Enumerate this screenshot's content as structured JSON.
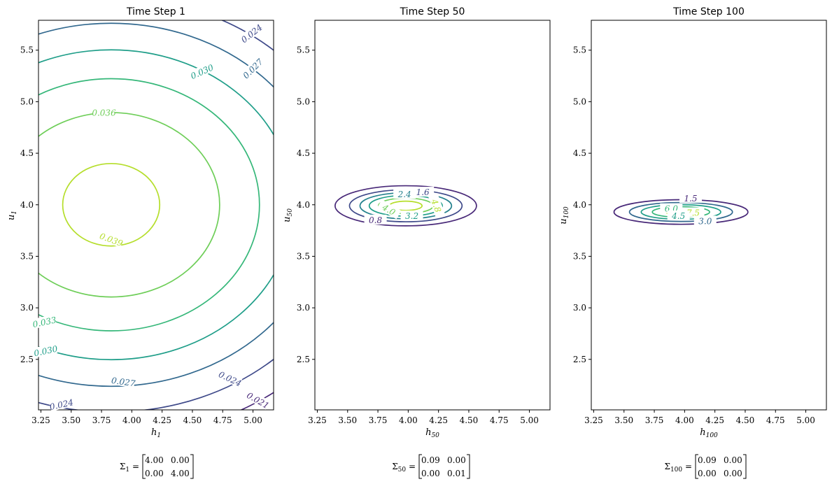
{
  "colors": {
    "viridis": [
      "#440154",
      "#482878",
      "#3e4989",
      "#31688e",
      "#26828e",
      "#1f9e89",
      "#35b779",
      "#6ece58",
      "#b5de2b",
      "#fde725"
    ]
  },
  "chart_data": [
    {
      "type": "contour",
      "title": "Time Step 1",
      "xlabel_var": "h",
      "xlabel_sub": "1",
      "ylabel_var": "u",
      "ylabel_sub": "1",
      "xlim": [
        3.23,
        5.17
      ],
      "ylim": [
        2.01,
        5.79
      ],
      "xticks": [
        "3.25",
        "3.50",
        "3.75",
        "4.00",
        "4.25",
        "4.50",
        "4.75",
        "5.00"
      ],
      "yticks": [
        "2.5",
        "3.0",
        "3.5",
        "4.0",
        "4.5",
        "5.0",
        "5.5"
      ],
      "mean": [
        3.83,
        4.0
      ],
      "sigma": [
        [
          4.0,
          0.0
        ],
        [
          0.0,
          4.0
        ]
      ],
      "levels": [
        0.021,
        0.024,
        0.027,
        0.03,
        0.033,
        0.036,
        0.039
      ],
      "level_labels": [
        {
          "text": "0.024",
          "x": 3.42,
          "y": 2.06,
          "angle": 12
        },
        {
          "text": "0.024",
          "x": 4.99,
          "y": 5.66,
          "angle": 38
        },
        {
          "text": "0.027",
          "x": 5.0,
          "y": 5.32,
          "angle": 45
        },
        {
          "text": "0.030",
          "x": 4.58,
          "y": 5.29,
          "angle": 24
        },
        {
          "text": "0.036",
          "x": 3.77,
          "y": 4.89,
          "angle": 0
        },
        {
          "text": "0.039",
          "x": 3.83,
          "y": 3.66,
          "angle": -20
        },
        {
          "text": "0.033",
          "x": 3.28,
          "y": 2.86,
          "angle": 12
        },
        {
          "text": "0.030",
          "x": 3.29,
          "y": 2.58,
          "angle": 12
        },
        {
          "text": "0.027",
          "x": 3.93,
          "y": 2.28,
          "angle": -8
        },
        {
          "text": "0.024",
          "x": 4.81,
          "y": 2.31,
          "angle": -25
        },
        {
          "text": "0.021",
          "x": 5.04,
          "y": 2.1,
          "angle": -30
        }
      ],
      "sigma_label": {
        "sym": "Σ",
        "sub": "1",
        "rows": [
          [
            "4.00",
            "0.00"
          ],
          [
            "0.00",
            "4.00"
          ]
        ]
      }
    },
    {
      "type": "contour",
      "title": "Time Step 50",
      "xlabel_var": "h",
      "xlabel_sub": "50",
      "ylabel_var": "u",
      "ylabel_sub": "50",
      "xlim": [
        3.23,
        5.17
      ],
      "ylim": [
        2.01,
        5.79
      ],
      "xticks": [
        "3.25",
        "3.50",
        "3.75",
        "4.00",
        "4.25",
        "4.50",
        "4.75",
        "5.00"
      ],
      "yticks": [
        "2.5",
        "3.0",
        "3.5",
        "4.0",
        "4.5",
        "5.0",
        "5.5"
      ],
      "mean": [
        3.98,
        3.99
      ],
      "sigma": [
        [
          0.09,
          0.0
        ],
        [
          0.0,
          0.01
        ]
      ],
      "levels": [
        0.8,
        1.6,
        2.4,
        3.2,
        4.0,
        4.8
      ],
      "level_labels": [
        {
          "text": "1.6",
          "x": 4.12,
          "y": 4.12,
          "angle": 0
        },
        {
          "text": "2.4",
          "x": 3.97,
          "y": 4.1,
          "angle": 0
        },
        {
          "text": "0.8",
          "x": 3.73,
          "y": 3.85,
          "angle": 0
        },
        {
          "text": "3.2",
          "x": 4.03,
          "y": 3.89,
          "angle": 0
        },
        {
          "text": "4.0",
          "x": 3.84,
          "y": 3.95,
          "angle": -30
        },
        {
          "text": "4.8",
          "x": 4.23,
          "y": 3.99,
          "angle": -70
        }
      ],
      "sigma_label": {
        "sym": "Σ",
        "sub": "50",
        "rows": [
          [
            "0.09",
            "0.00"
          ],
          [
            "0.00",
            "0.01"
          ]
        ]
      }
    },
    {
      "type": "contour",
      "title": "Time Step 100",
      "xlabel_var": "h",
      "xlabel_sub": "100",
      "ylabel_var": "u",
      "ylabel_sub": "100",
      "xlim": [
        3.23,
        5.17
      ],
      "ylim": [
        2.01,
        5.79
      ],
      "xticks": [
        "3.25",
        "3.50",
        "3.75",
        "4.00",
        "4.25",
        "4.50",
        "4.75",
        "5.00"
      ],
      "yticks": [
        "2.5",
        "3.0",
        "3.5",
        "4.0",
        "4.5",
        "5.0",
        "5.5"
      ],
      "mean": [
        3.97,
        3.93
      ],
      "sigma": [
        [
          0.09,
          0.0
        ],
        [
          0.0,
          0.0
        ]
      ],
      "levels": [
        1.5,
        3.0,
        4.5,
        6.0,
        7.5
      ],
      "level_labels": [
        {
          "text": "1.5",
          "x": 4.05,
          "y": 4.06,
          "angle": 0
        },
        {
          "text": "6.0",
          "x": 3.89,
          "y": 3.96,
          "angle": 0
        },
        {
          "text": "7.5",
          "x": 4.07,
          "y": 3.92,
          "angle": 0
        },
        {
          "text": "4.5",
          "x": 3.95,
          "y": 3.89,
          "angle": 0
        },
        {
          "text": "3.0",
          "x": 4.17,
          "y": 3.84,
          "angle": 0
        }
      ],
      "sigma_label": {
        "sym": "Σ",
        "sub": "100",
        "rows": [
          [
            "0.09",
            "0.00"
          ],
          [
            "0.00",
            "0.00"
          ]
        ]
      }
    }
  ]
}
